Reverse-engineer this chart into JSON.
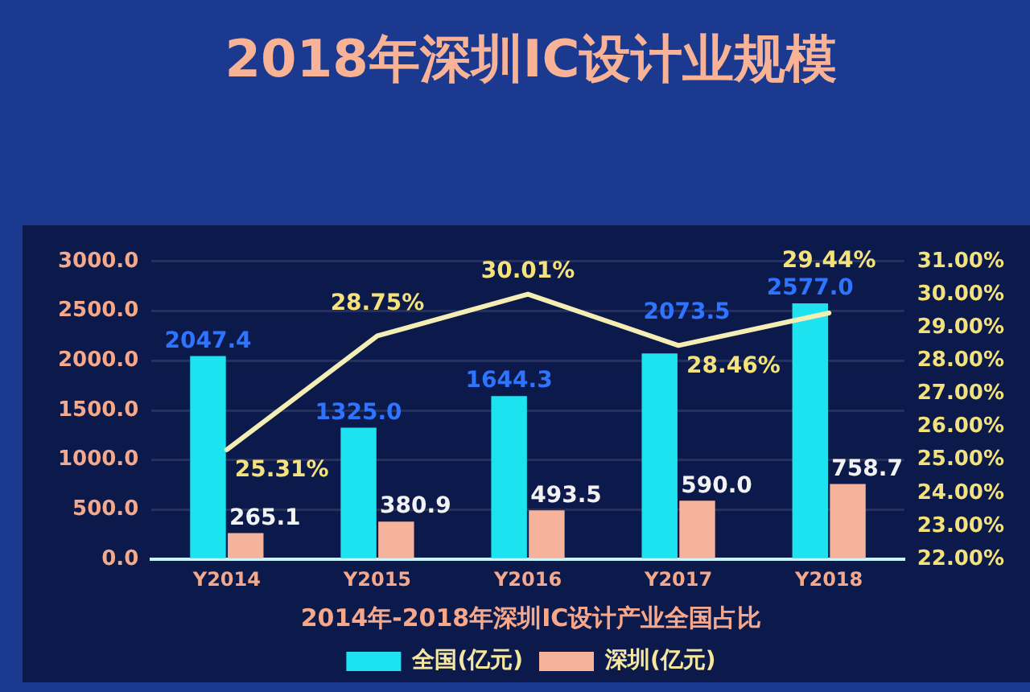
{
  "chart_data": {
    "type": "bar",
    "title": "2018年深圳IC设计业规模",
    "subtitle": "2014年-2018年深圳IC设计产业全国占比",
    "categories": [
      "Y2014",
      "Y2015",
      "Y2016",
      "Y2017",
      "Y2018"
    ],
    "series": [
      {
        "name": "全国(亿元)",
        "color": "#1de3f0",
        "values": [
          2047.4,
          1325.0,
          1644.3,
          2073.5,
          2577.0
        ],
        "value_labels": [
          "2047.4",
          "1325.0",
          "1644.3",
          "2073.5",
          "2577.0"
        ]
      },
      {
        "name": "深圳(亿元)",
        "color": "#f5b39b",
        "values": [
          265.1,
          380.9,
          493.5,
          590.0,
          758.7
        ],
        "value_labels": [
          "265.1",
          "380.9",
          "493.5",
          "590.0",
          "758.7"
        ]
      },
      {
        "type": "line",
        "axis": "y2",
        "color": "#f4eeb4",
        "values": [
          25.31,
          28.75,
          30.01,
          28.46,
          29.44
        ],
        "value_labels": [
          "25.31%",
          "28.75%",
          "30.01%",
          "28.46%",
          "29.44%"
        ]
      }
    ],
    "ylim": [
      0,
      3000
    ],
    "yticks": [
      {
        "value": 0,
        "label": "0.0"
      },
      {
        "value": 500,
        "label": "500.0"
      },
      {
        "value": 1000,
        "label": "1000.0"
      },
      {
        "value": 1500,
        "label": "1500.0"
      },
      {
        "value": 2000,
        "label": "2000.0"
      },
      {
        "value": 2500,
        "label": "2500.0"
      },
      {
        "value": 3000,
        "label": "3000.0"
      }
    ],
    "y2lim": [
      22,
      31
    ],
    "y2ticks": [
      {
        "value": 22,
        "label": "22.00%"
      },
      {
        "value": 23,
        "label": "23.00%"
      },
      {
        "value": 24,
        "label": "24.00%"
      },
      {
        "value": 25,
        "label": "25.00%"
      },
      {
        "value": 26,
        "label": "26.00%"
      },
      {
        "value": 27,
        "label": "27.00%"
      },
      {
        "value": 28,
        "label": "28.00%"
      },
      {
        "value": 29,
        "label": "29.00%"
      },
      {
        "value": 30,
        "label": "30.00%"
      },
      {
        "value": 31,
        "label": "31.00%"
      }
    ],
    "grid": "y",
    "legend": "bottom"
  }
}
